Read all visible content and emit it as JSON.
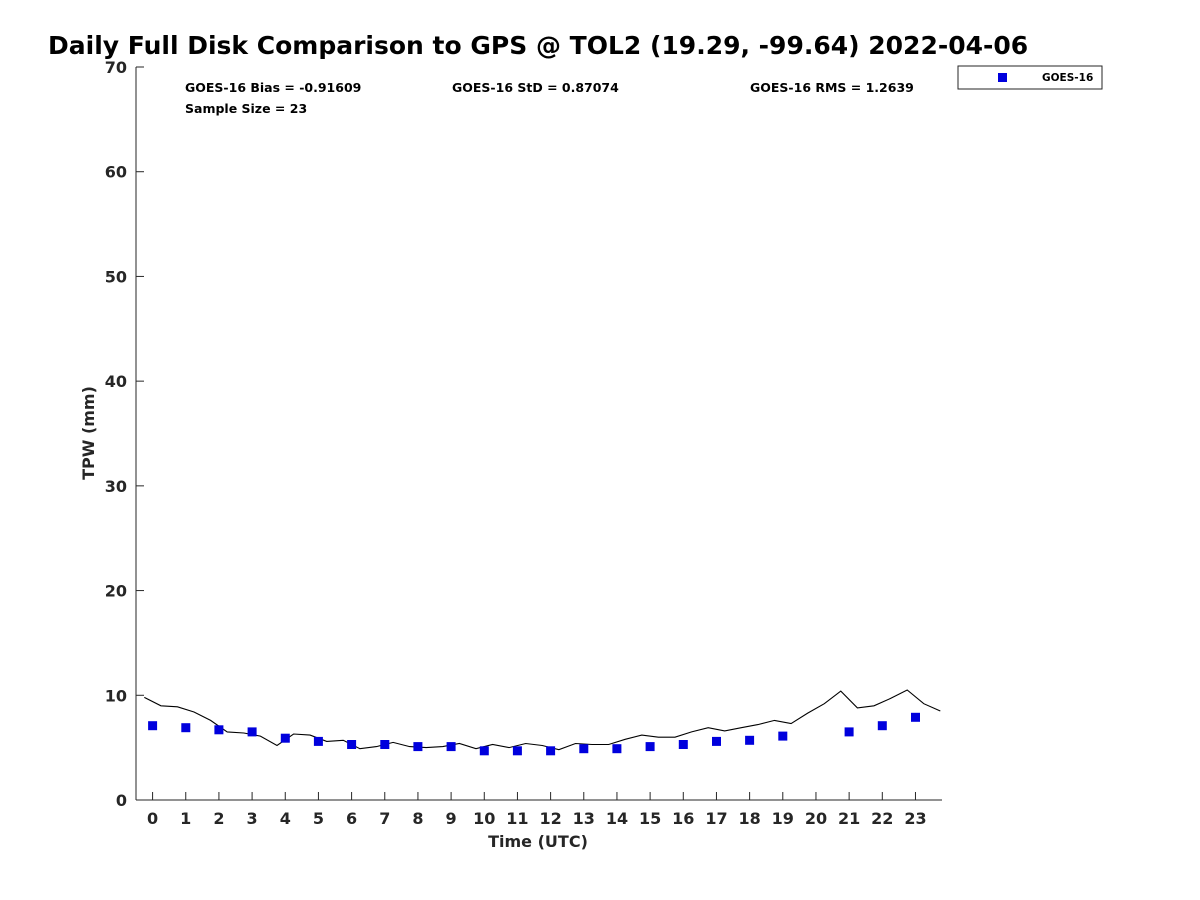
{
  "chart_data": {
    "type": "scatter",
    "title": "Daily Full Disk Comparison to GPS @ TOL2 (19.29, -99.64) 2022-04-06",
    "xlabel": "Time (UTC)",
    "ylabel": "TPW (mm)",
    "xlim": [
      -0.5,
      23.8
    ],
    "ylim": [
      0,
      70
    ],
    "x_ticks": [
      "0",
      "1",
      "2",
      "3",
      "4",
      "5",
      "6",
      "7",
      "8",
      "9",
      "10",
      "11",
      "12",
      "13",
      "14",
      "15",
      "16",
      "17",
      "18",
      "19",
      "20",
      "21",
      "22",
      "23"
    ],
    "y_ticks": [
      "0",
      "10",
      "20",
      "30",
      "40",
      "50",
      "60",
      "70"
    ],
    "grid": false,
    "legend": {
      "placement": "top-right",
      "entries": [
        "GOES-16"
      ]
    },
    "stats": {
      "bias": "GOES-16 Bias = -0.91609",
      "std": "GOES-16 StD = 0.87074",
      "rms": "GOES-16 RMS = 1.2639",
      "sample": "Sample Size = 23"
    },
    "colors": {
      "goes": "#0000dd",
      "gps_line": "#000000",
      "axis": "#262626"
    },
    "series": [
      {
        "name": "GOES-16",
        "marker": "square",
        "x": [
          0,
          1,
          2,
          3,
          4,
          5,
          6,
          7,
          8,
          9,
          10,
          11,
          12,
          13,
          14,
          15,
          16,
          17,
          18,
          19,
          21,
          22,
          23
        ],
        "y": [
          7.1,
          6.9,
          6.7,
          6.5,
          5.9,
          5.6,
          5.3,
          5.3,
          5.1,
          5.1,
          4.7,
          4.7,
          4.7,
          4.9,
          4.9,
          5.1,
          5.3,
          5.6,
          5.7,
          6.1,
          6.5,
          7.1,
          7.9
        ]
      },
      {
        "marker": "line",
        "x": [
          -0.25,
          0.25,
          0.75,
          1.25,
          1.75,
          2.25,
          2.75,
          3.25,
          3.75,
          4.25,
          4.75,
          5.25,
          5.75,
          6.25,
          6.75,
          7.25,
          7.75,
          8.25,
          8.75,
          9.25,
          9.75,
          10.25,
          10.75,
          11.25,
          11.75,
          12.25,
          12.75,
          13.25,
          13.75,
          14.25,
          14.75,
          15.25,
          15.75,
          16.25,
          16.75,
          17.25,
          17.75,
          18.25,
          18.75,
          19.25,
          19.75,
          20.25,
          20.75,
          21.25,
          21.75,
          22.25,
          22.75,
          23.25,
          23.75
        ],
        "y": [
          9.8,
          9.0,
          8.9,
          8.4,
          7.6,
          6.5,
          6.4,
          6.1,
          5.2,
          6.3,
          6.2,
          5.6,
          5.7,
          4.9,
          5.1,
          5.5,
          5.1,
          5.0,
          5.1,
          5.4,
          4.9,
          5.3,
          5.0,
          5.4,
          5.2,
          4.8,
          5.4,
          5.3,
          5.3,
          5.8,
          6.2,
          6.0,
          6.0,
          6.5,
          6.9,
          6.6,
          6.9,
          7.2,
          7.6,
          7.3,
          8.3,
          9.2,
          10.4,
          8.8,
          9.0,
          9.7,
          10.5,
          9.2,
          8.5
        ]
      }
    ]
  }
}
